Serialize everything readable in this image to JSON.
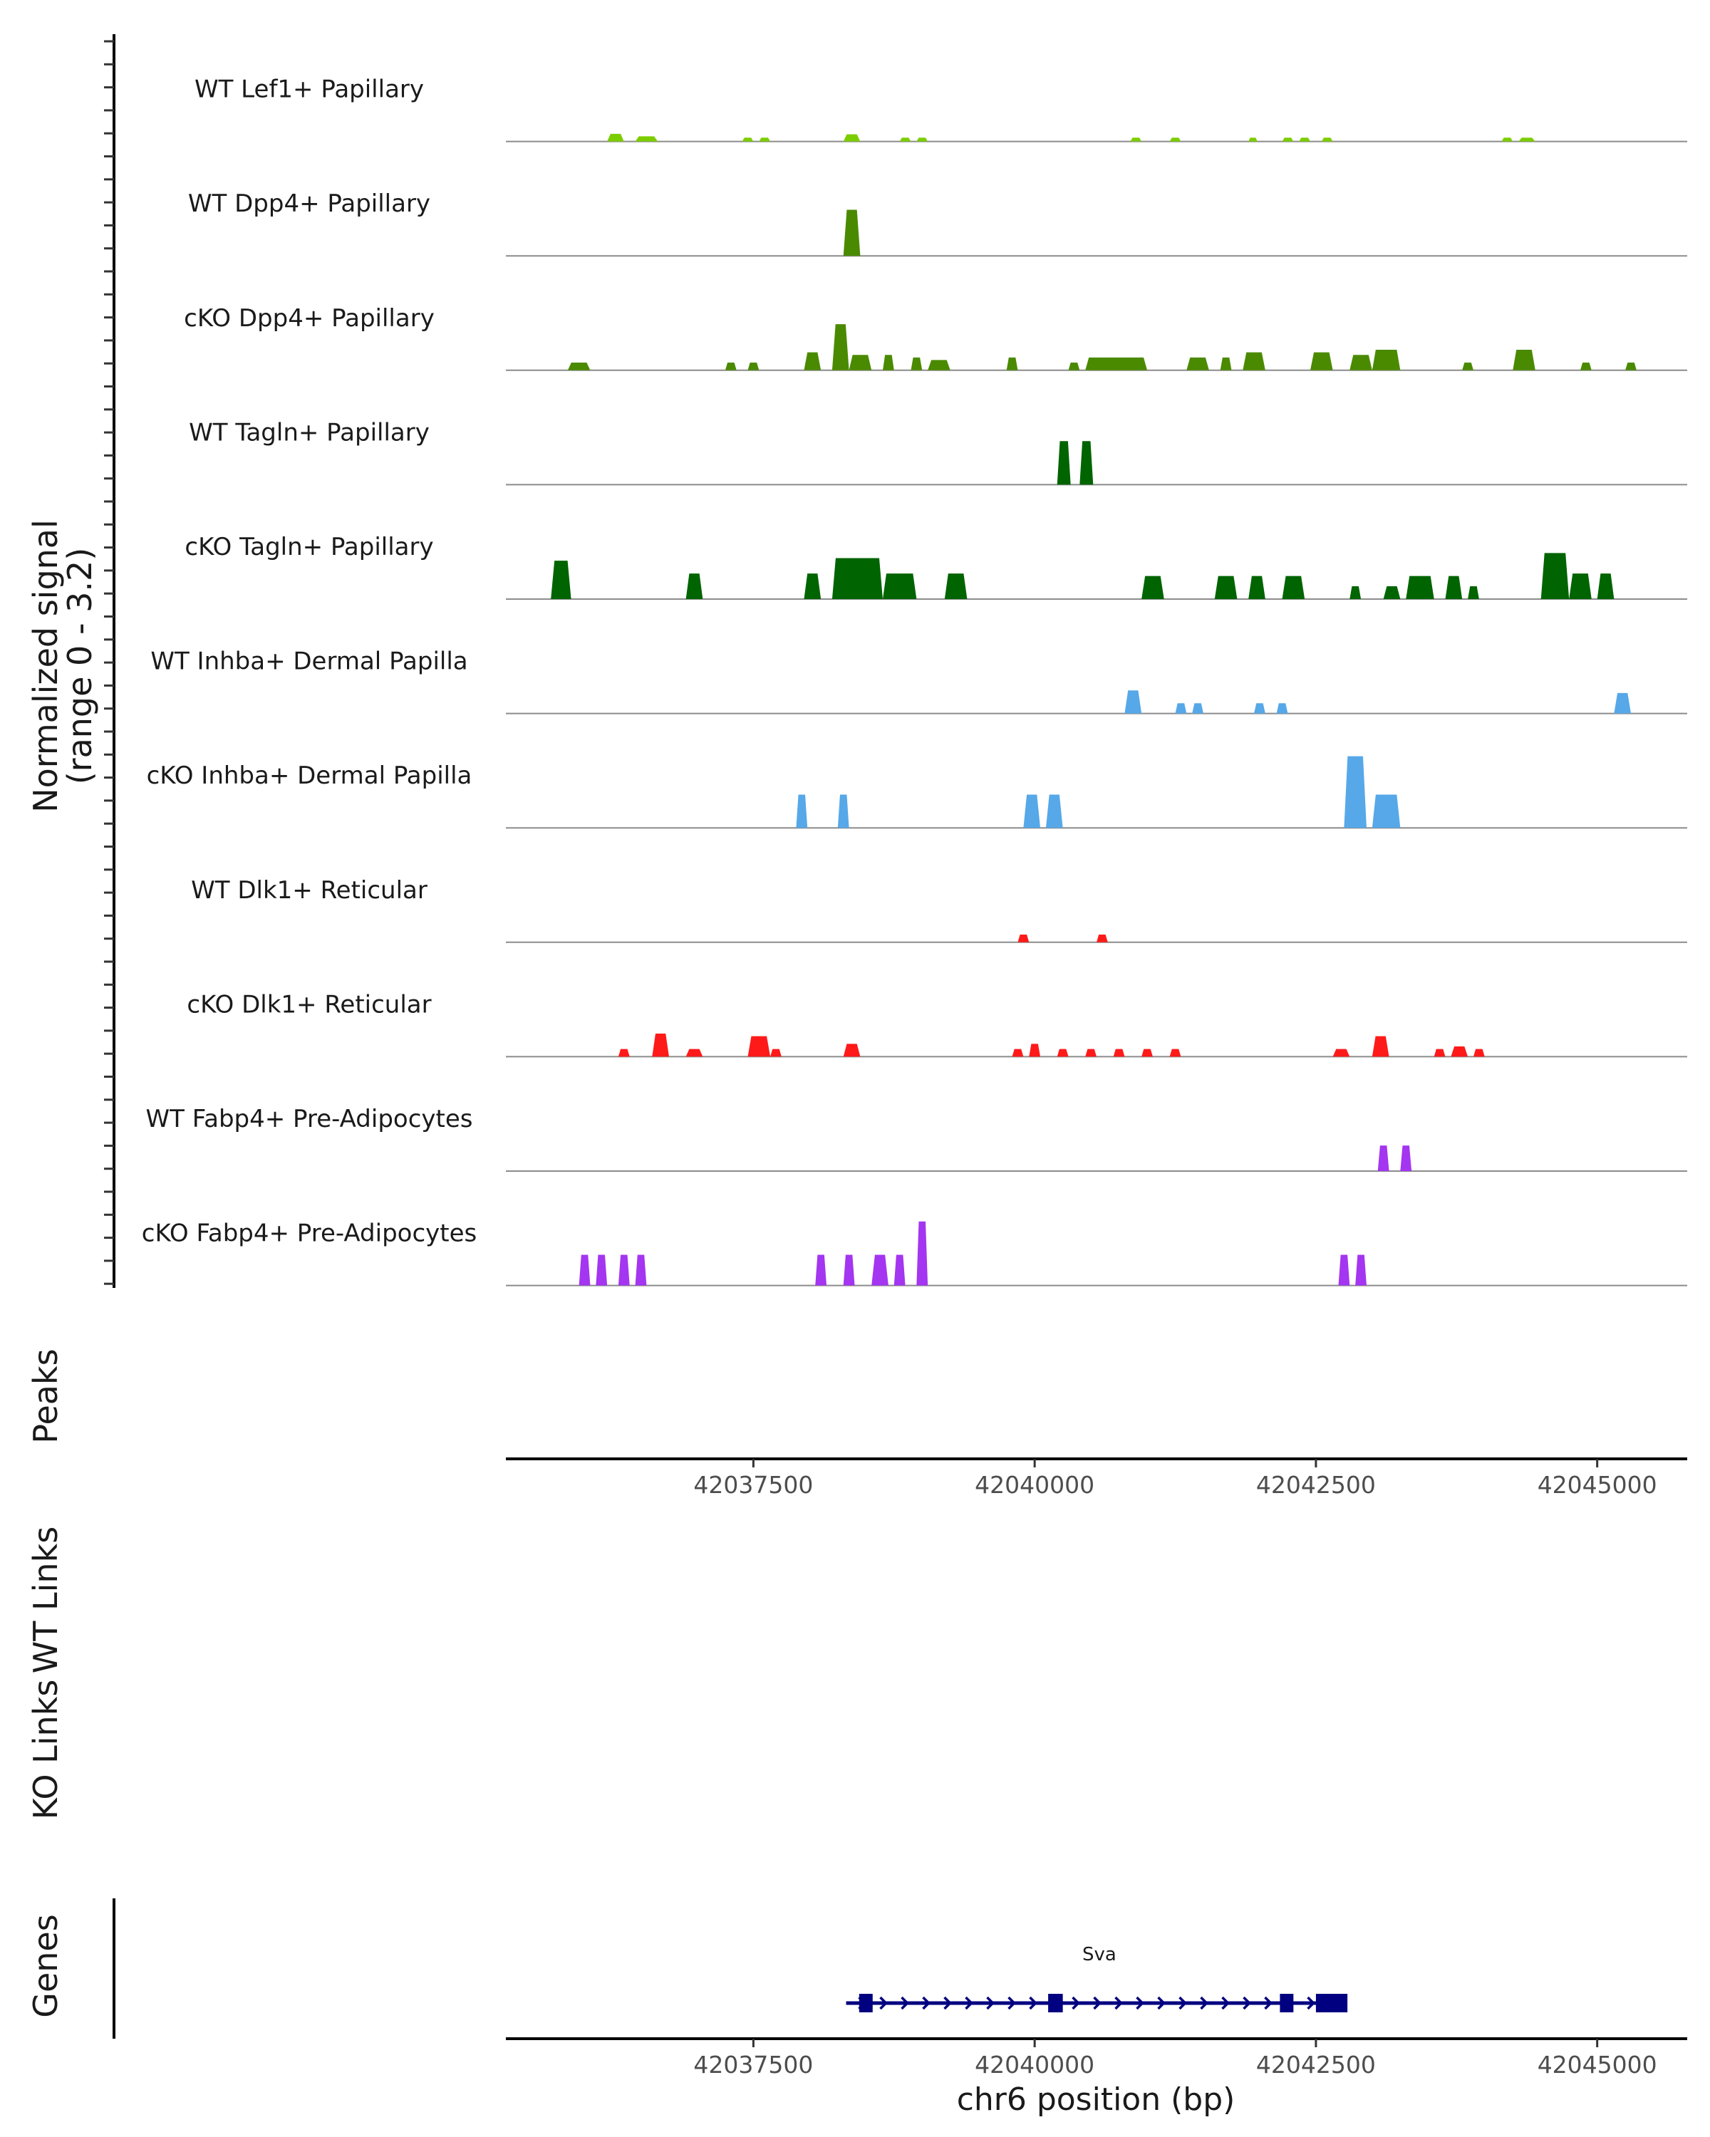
{
  "chart_data": {
    "type": "area",
    "genome_tracks": true,
    "region": {
      "chrom": "chr6",
      "start": 42035300,
      "end": 42045800
    },
    "coverage_ylabel_line1": "Normalized signal",
    "coverage_ylabel_line2": "(range 0 - 3.2)",
    "ylim": [
      0,
      3.2
    ],
    "series": [
      {
        "name": "WT Lef1+ Papillary",
        "color": "#7ccd00",
        "peaks": [
          [
            42036200,
            42036350,
            0.3
          ],
          [
            42036450,
            42036650,
            0.2
          ],
          [
            42037400,
            42037500,
            0.15
          ],
          [
            42037550,
            42037650,
            0.15
          ],
          [
            42038300,
            42038450,
            0.28
          ],
          [
            42038800,
            42038900,
            0.15
          ],
          [
            42038950,
            42039050,
            0.15
          ],
          [
            42040850,
            42040950,
            0.15
          ],
          [
            42041200,
            42041300,
            0.15
          ],
          [
            42041900,
            42041980,
            0.15
          ],
          [
            42042200,
            42042300,
            0.15
          ],
          [
            42042350,
            42042450,
            0.15
          ],
          [
            42042550,
            42042650,
            0.15
          ],
          [
            42044150,
            42044250,
            0.15
          ],
          [
            42044300,
            42044450,
            0.15
          ]
        ]
      },
      {
        "name": "WT Dpp4+ Papillary",
        "color": "#4a8a00",
        "peaks": [
          [
            42038300,
            42038450,
            1.8
          ]
        ]
      },
      {
        "name": "cKO Dpp4+ Papillary",
        "color": "#4a8a00",
        "peaks": [
          [
            42035850,
            42036050,
            0.3
          ],
          [
            42037250,
            42037350,
            0.3
          ],
          [
            42037450,
            42037550,
            0.3
          ],
          [
            42037950,
            42038100,
            0.7
          ],
          [
            42038200,
            42038350,
            1.8
          ],
          [
            42038350,
            42038550,
            0.6
          ],
          [
            42038650,
            42038750,
            0.6
          ],
          [
            42038900,
            42039000,
            0.5
          ],
          [
            42039050,
            42039250,
            0.4
          ],
          [
            42039750,
            42039850,
            0.5
          ],
          [
            42040300,
            42040400,
            0.3
          ],
          [
            42040450,
            42041000,
            0.5
          ],
          [
            42041350,
            42041550,
            0.5
          ],
          [
            42041650,
            42041750,
            0.5
          ],
          [
            42041850,
            42042050,
            0.7
          ],
          [
            42042450,
            42042650,
            0.7
          ],
          [
            42042800,
            42043000,
            0.6
          ],
          [
            42043000,
            42043250,
            0.8
          ],
          [
            42043800,
            42043900,
            0.3
          ],
          [
            42044250,
            42044450,
            0.8
          ],
          [
            42044850,
            42044950,
            0.3
          ],
          [
            42045250,
            42045350,
            0.3
          ]
        ]
      },
      {
        "name": "WT Tagln+ Papillary",
        "color": "#006400",
        "peaks": [
          [
            42040200,
            42040320,
            1.7
          ],
          [
            42040400,
            42040520,
            1.7
          ]
        ]
      },
      {
        "name": "cKO Tagln+ Papillary",
        "color": "#006400",
        "peaks": [
          [
            42035700,
            42035880,
            1.5
          ],
          [
            42036900,
            42037050,
            1.0
          ],
          [
            42037950,
            42038100,
            1.0
          ],
          [
            42038200,
            42038650,
            1.6
          ],
          [
            42038650,
            42038950,
            1.0
          ],
          [
            42039200,
            42039400,
            1.0
          ],
          [
            42040950,
            42041150,
            0.9
          ],
          [
            42041600,
            42041800,
            0.9
          ],
          [
            42041900,
            42042050,
            0.9
          ],
          [
            42042200,
            42042400,
            0.9
          ],
          [
            42042800,
            42042900,
            0.5
          ],
          [
            42043100,
            42043250,
            0.5
          ],
          [
            42043300,
            42043550,
            0.9
          ],
          [
            42043650,
            42043800,
            0.9
          ],
          [
            42043850,
            42043950,
            0.5
          ],
          [
            42044500,
            42044750,
            1.8
          ],
          [
            42044750,
            42044950,
            1.0
          ],
          [
            42045000,
            42045150,
            1.0
          ]
        ]
      },
      {
        "name": "WT Inhba+ Dermal Papilla",
        "color": "#56a8e8",
        "peaks": [
          [
            42040800,
            42040950,
            0.9
          ],
          [
            42041250,
            42041350,
            0.4
          ],
          [
            42041400,
            42041500,
            0.4
          ],
          [
            42041950,
            42042050,
            0.4
          ],
          [
            42042150,
            42042250,
            0.4
          ],
          [
            42045150,
            42045300,
            0.8
          ]
        ]
      },
      {
        "name": "cKO Inhba+ Dermal Papilla",
        "color": "#56a8e8",
        "peaks": [
          [
            42037880,
            42037980,
            1.3
          ],
          [
            42038250,
            42038350,
            1.3
          ],
          [
            42039900,
            42040050,
            1.3
          ],
          [
            42040100,
            42040250,
            1.3
          ],
          [
            42042750,
            42042950,
            2.8
          ],
          [
            42043000,
            42043250,
            1.3
          ]
        ]
      },
      {
        "name": "WT Dlk1+ Reticular",
        "color": "#ff1a1a",
        "peaks": [
          [
            42039850,
            42039950,
            0.3
          ],
          [
            42040550,
            42040650,
            0.3
          ]
        ]
      },
      {
        "name": "cKO Dlk1+ Reticular",
        "color": "#ff1a1a",
        "peaks": [
          [
            42036300,
            42036400,
            0.3
          ],
          [
            42036600,
            42036750,
            0.9
          ],
          [
            42036900,
            42037050,
            0.3
          ],
          [
            42037450,
            42037650,
            0.8
          ],
          [
            42037650,
            42037750,
            0.3
          ],
          [
            42038300,
            42038450,
            0.5
          ],
          [
            42039800,
            42039900,
            0.3
          ],
          [
            42039950,
            42040050,
            0.5
          ],
          [
            42040200,
            42040300,
            0.3
          ],
          [
            42040450,
            42040550,
            0.3
          ],
          [
            42040700,
            42040800,
            0.3
          ],
          [
            42040950,
            42041050,
            0.3
          ],
          [
            42041200,
            42041300,
            0.3
          ],
          [
            42042650,
            42042800,
            0.3
          ],
          [
            42043000,
            42043150,
            0.8
          ],
          [
            42043550,
            42043650,
            0.3
          ],
          [
            42043700,
            42043850,
            0.4
          ],
          [
            42043900,
            42044000,
            0.3
          ]
        ]
      },
      {
        "name": "WT Fabp4+ Pre-Adipocytes",
        "color": "#a435f0",
        "peaks": [
          [
            42043050,
            42043150,
            1.0
          ],
          [
            42043250,
            42043350,
            1.0
          ]
        ]
      },
      {
        "name": "cKO Fabp4+ Pre-Adipocytes",
        "color": "#a435f0",
        "peaks": [
          [
            42035950,
            42036050,
            1.2
          ],
          [
            42036100,
            42036200,
            1.2
          ],
          [
            42036300,
            42036400,
            1.2
          ],
          [
            42036450,
            42036550,
            1.2
          ],
          [
            42038050,
            42038150,
            1.2
          ],
          [
            42038300,
            42038400,
            1.2
          ],
          [
            42038550,
            42038700,
            1.2
          ],
          [
            42038750,
            42038850,
            1.2
          ],
          [
            42038950,
            42039050,
            2.5
          ],
          [
            42042700,
            42042800,
            1.2
          ],
          [
            42042850,
            42042950,
            1.2
          ]
        ]
      }
    ],
    "tracks": {
      "peaks": "Peaks",
      "wt_links": "WT Links",
      "ko_links": "KO Links",
      "genes": "Genes"
    },
    "x_ticks": [
      {
        "value": 42037500,
        "label": "42037500"
      },
      {
        "value": 42040000,
        "label": "42040000"
      },
      {
        "value": 42042500,
        "label": "42042500"
      },
      {
        "value": 42045000,
        "label": "42045000"
      }
    ],
    "xlabel": "chr6 position (bp)",
    "gene": {
      "name": "Sva",
      "strand": "+",
      "start": 42038400,
      "end": 42042750,
      "exons": [
        [
          42038440,
          42038560
        ],
        [
          42040120,
          42040250
        ],
        [
          42042180,
          42042300
        ],
        [
          42042500,
          42042780
        ]
      ]
    }
  }
}
